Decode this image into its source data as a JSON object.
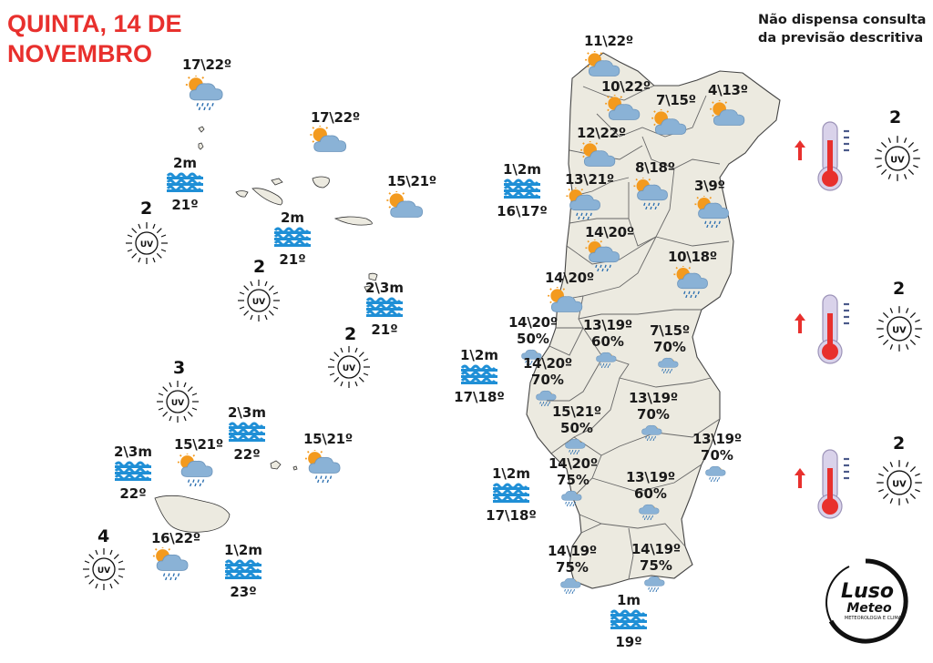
{
  "header": {
    "title": "QUINTA, 14 DE NOVEMBRO",
    "disclaimer": "Não dispensa consulta da previsão descritiva"
  },
  "azores": {
    "forecasts": [
      {
        "temp": "17\\22º",
        "icon": "sun-cloud-rain-icon"
      },
      {
        "temp": "17\\22º",
        "icon": "sun-cloud-icon"
      },
      {
        "temp": "15\\21º",
        "icon": "sun-cloud-icon"
      }
    ],
    "sea": [
      {
        "wave": "2m",
        "water": "21º"
      },
      {
        "wave": "2m",
        "water": "21º"
      },
      {
        "wave": "2\\3m",
        "water": "21º"
      }
    ],
    "uv": [
      "2",
      "2",
      "2"
    ]
  },
  "madeira": {
    "forecasts": [
      {
        "temp": "15\\21º",
        "icon": "sun-cloud-rain-icon"
      },
      {
        "temp": "15\\21º",
        "icon": "sun-cloud-rain-icon"
      },
      {
        "temp": "16\\22º",
        "icon": "sun-cloud-rain-icon"
      }
    ],
    "sea": [
      {
        "wave": "2\\3m",
        "water": "22º"
      },
      {
        "wave": "2\\3m",
        "water": "22º"
      },
      {
        "wave": "1\\2m",
        "water": "23º"
      }
    ],
    "uv": [
      "3",
      "4"
    ]
  },
  "mainland": {
    "forecasts": [
      {
        "temp": "11\\22º",
        "icon": "sun-cloud-icon"
      },
      {
        "temp": "10\\22º",
        "icon": "sun-cloud-icon"
      },
      {
        "temp": "7\\15º",
        "icon": "sun-cloud-icon"
      },
      {
        "temp": "4\\13º",
        "icon": "sun-cloud-icon"
      },
      {
        "temp": "12\\22º",
        "icon": "sun-cloud-icon"
      },
      {
        "temp": "13\\21º",
        "icon": "sun-cloud-rain-icon"
      },
      {
        "temp": "8\\18º",
        "icon": "sun-cloud-rain-icon"
      },
      {
        "temp": "3\\9º",
        "icon": "sun-cloud-rain-icon"
      },
      {
        "temp": "14\\20º",
        "icon": "sun-cloud-rain-icon"
      },
      {
        "temp": "10\\18º",
        "icon": "sun-cloud-rain-icon"
      },
      {
        "temp": "14\\20º",
        "icon": "sun-cloud-icon"
      }
    ],
    "rain_forecasts": [
      {
        "temp": "14\\20º",
        "pct": "50%"
      },
      {
        "temp": "13\\19º",
        "pct": "60%"
      },
      {
        "temp": "7\\15º",
        "pct": "70%"
      },
      {
        "temp": "14\\20º",
        "pct": "70%"
      },
      {
        "temp": "13\\19º",
        "pct": "70%"
      },
      {
        "temp": "15\\21º",
        "pct": "50%"
      },
      {
        "temp": "13\\19º",
        "pct": "70%"
      },
      {
        "temp": "14\\20º",
        "pct": "75%"
      },
      {
        "temp": "13\\19º",
        "pct": "60%"
      },
      {
        "temp": "14\\19º",
        "pct": "75%"
      },
      {
        "temp": "14\\19º",
        "pct": "75%"
      }
    ],
    "sea": [
      {
        "wave": "1\\2m",
        "water": "16\\17º"
      },
      {
        "wave": "1\\2m",
        "water": "17\\18º"
      },
      {
        "wave": "1\\2m",
        "water": "17\\18º"
      },
      {
        "wave": "1m",
        "water": "19º"
      }
    ]
  },
  "sidebar_uv": [
    "2",
    "2",
    "2"
  ],
  "colors": {
    "title": "#e8302d",
    "land": "#eceae0",
    "wave": "#1f8fd6",
    "sun": "#f39a1e",
    "cloud": "#8ab2d6",
    "arrow": "#e8302d"
  },
  "logo": {
    "line1": "Luso",
    "line2": "Meteo",
    "line3": "METEOROLOGIA E CLIMA"
  }
}
